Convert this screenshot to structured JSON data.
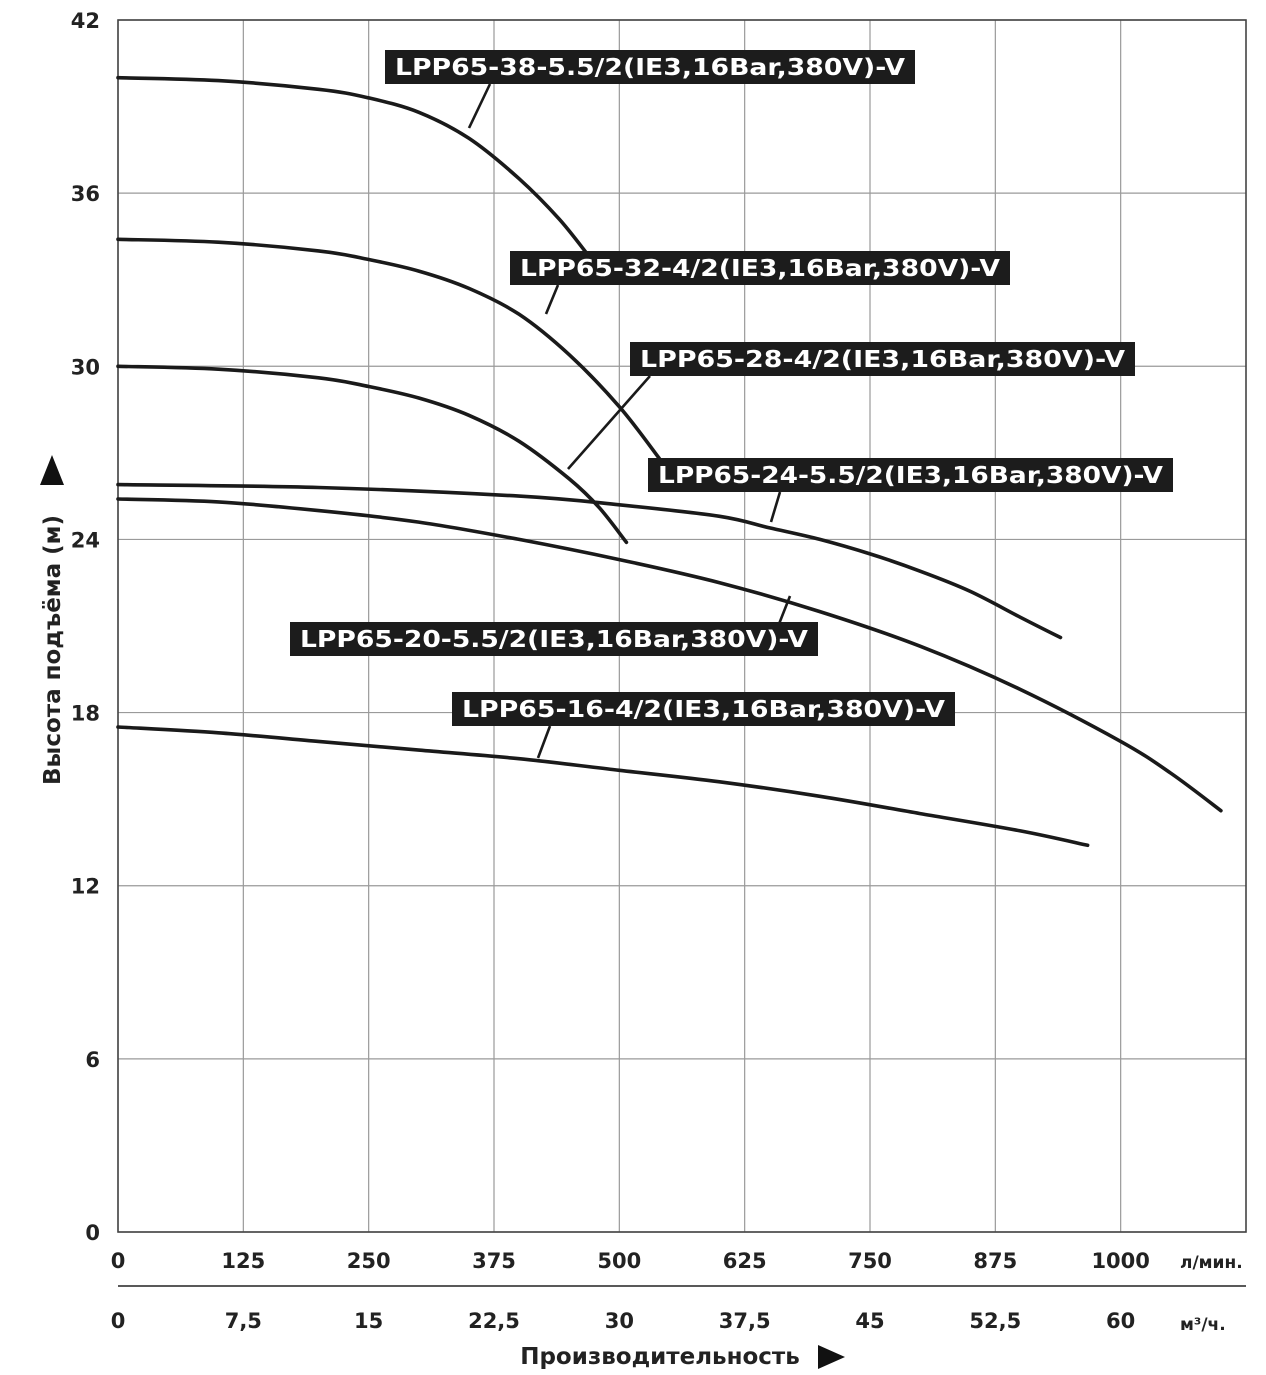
{
  "chart_data": {
    "type": "line",
    "title": "",
    "ylabel": "Высота подъёма (м)",
    "xlabel": "Производительность",
    "ylim": [
      0,
      42
    ],
    "xlim": [
      0,
      1125
    ],
    "grid": true,
    "y_ticks": [
      0,
      6,
      12,
      18,
      24,
      30,
      36,
      42
    ],
    "x_ticks_lpm": [
      "0",
      "125",
      "250",
      "375",
      "500",
      "625",
      "750",
      "875",
      "1000"
    ],
    "x_unit_lpm": "л/мин.",
    "x_ticks_m3h": [
      "0",
      "7,5",
      "15",
      "22,5",
      "30",
      "37,5",
      "45",
      "52,5",
      "60"
    ],
    "x_unit_m3h": "м³/ч.",
    "series": [
      {
        "name": "LPP65-38-5.5/2(IE3,16Bar,380V)-V",
        "x": [
          0,
          100,
          200,
          250,
          300,
          350,
          400,
          440,
          470
        ],
        "y": [
          40.0,
          39.9,
          39.6,
          39.3,
          38.8,
          37.9,
          36.5,
          35.1,
          33.8
        ]
      },
      {
        "name": "LPP65-32-4/2(IE3,16Bar,380V)-V",
        "x": [
          0,
          100,
          200,
          250,
          300,
          350,
          400,
          450,
          500,
          540
        ],
        "y": [
          34.4,
          34.3,
          34.0,
          33.7,
          33.3,
          32.7,
          31.8,
          30.4,
          28.6,
          26.8
        ]
      },
      {
        "name": "LPP65-28-4/2(IE3,16Bar,380V)-V",
        "x": [
          0,
          100,
          200,
          250,
          300,
          350,
          400,
          450,
          480,
          507
        ],
        "y": [
          30.0,
          29.9,
          29.6,
          29.3,
          28.9,
          28.3,
          27.4,
          26.1,
          25.1,
          23.9
        ]
      },
      {
        "name": "LPP65-24-5.5/2(IE3,16Bar,380V)-V",
        "x": [
          0,
          200,
          400,
          500,
          600,
          650,
          700,
          750,
          800,
          850,
          900,
          940
        ],
        "y": [
          25.9,
          25.8,
          25.5,
          25.2,
          24.8,
          24.4,
          24.0,
          23.5,
          22.9,
          22.2,
          21.3,
          20.6
        ]
      },
      {
        "name": "LPP65-20-5.5/2(IE3,16Bar,380V)-V",
        "x": [
          0,
          100,
          200,
          300,
          400,
          500,
          600,
          700,
          800,
          900,
          1000,
          1050,
          1100
        ],
        "y": [
          25.4,
          25.3,
          25.0,
          24.6,
          24.0,
          23.3,
          22.5,
          21.5,
          20.3,
          18.8,
          17.0,
          15.9,
          14.6
        ]
      },
      {
        "name": "LPP65-16-4/2(IE3,16Bar,380V)-V",
        "x": [
          0,
          100,
          200,
          300,
          400,
          500,
          600,
          700,
          800,
          900,
          967
        ],
        "y": [
          17.5,
          17.3,
          17.0,
          16.7,
          16.4,
          16.0,
          15.6,
          15.1,
          14.5,
          13.9,
          13.4
        ]
      }
    ]
  }
}
